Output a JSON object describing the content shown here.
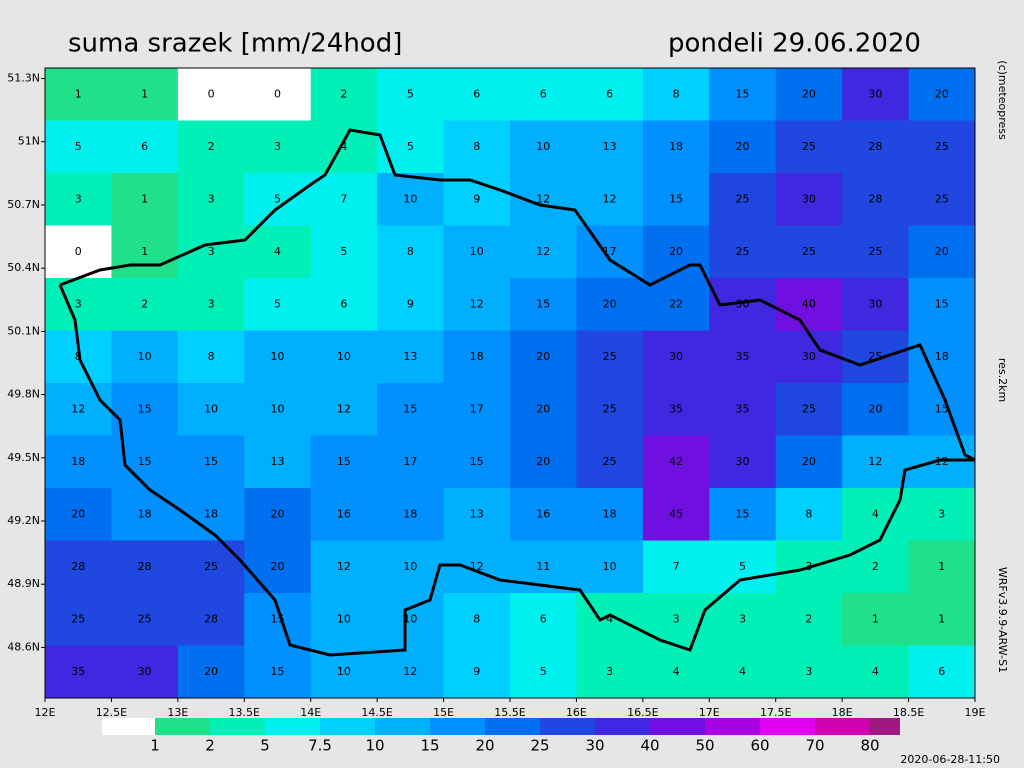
{
  "title": "suma srazek [mm/24hod]",
  "date": "pondeli 29.06.2020",
  "side_texts": [
    "(c)meteopress",
    "res.2km",
    "WRFv3.9.9-ARW-S1"
  ],
  "timestamp": "2020-06-28-11:50",
  "map": {
    "xlim": [
      12,
      19
    ],
    "ylim": [
      48.36,
      51.35
    ],
    "xticks": [
      {
        "value": 12,
        "label": "12E"
      },
      {
        "value": 12.5,
        "label": "12.5E"
      },
      {
        "value": 13,
        "label": "13E"
      },
      {
        "value": 13.5,
        "label": "13.5E"
      },
      {
        "value": 14,
        "label": "14E"
      },
      {
        "value": 14.5,
        "label": "14.5E"
      },
      {
        "value": 15,
        "label": "15E"
      },
      {
        "value": 15.5,
        "label": "15.5E"
      },
      {
        "value": 16,
        "label": "16E"
      },
      {
        "value": 16.5,
        "label": "16.5E"
      },
      {
        "value": 17,
        "label": "17E"
      },
      {
        "value": 17.5,
        "label": "17.5E"
      },
      {
        "value": 18,
        "label": "18E"
      },
      {
        "value": 18.5,
        "label": "18.5E"
      },
      {
        "value": 19,
        "label": "19E"
      }
    ],
    "yticks": [
      {
        "value": 51.3,
        "label": "51.3N"
      },
      {
        "value": 51,
        "label": "51N"
      },
      {
        "value": 50.7,
        "label": "50.7N"
      },
      {
        "value": 50.4,
        "label": "50.4N"
      },
      {
        "value": 50.1,
        "label": "50.1N"
      },
      {
        "value": 49.8,
        "label": "49.8N"
      },
      {
        "value": 49.5,
        "label": "49.5N"
      },
      {
        "value": 49.2,
        "label": "49.2N"
      },
      {
        "value": 48.9,
        "label": "48.9N"
      },
      {
        "value": 48.6,
        "label": "48.6N"
      }
    ],
    "values": [
      [
        1,
        1,
        0,
        0,
        2,
        5,
        6,
        6,
        6,
        8,
        15,
        20,
        30,
        20
      ],
      [
        5,
        6,
        2,
        3,
        4,
        5,
        8,
        10,
        13,
        18,
        20,
        25,
        28,
        25
      ],
      [
        3,
        1,
        3,
        5,
        7,
        10,
        9,
        12,
        12,
        15,
        25,
        30,
        28,
        25
      ],
      [
        0,
        1,
        3,
        4,
        5,
        8,
        10,
        12,
        17,
        20,
        25,
        25,
        25,
        20
      ],
      [
        3,
        2,
        3,
        5,
        6,
        9,
        12,
        15,
        20,
        22,
        30,
        40,
        30,
        15
      ],
      [
        8,
        10,
        8,
        10,
        10,
        13,
        18,
        20,
        25,
        30,
        35,
        30,
        25,
        18
      ],
      [
        12,
        15,
        10,
        10,
        12,
        15,
        17,
        20,
        25,
        35,
        35,
        25,
        20,
        15
      ],
      [
        18,
        15,
        15,
        13,
        15,
        17,
        15,
        20,
        25,
        42,
        30,
        20,
        12,
        12
      ],
      [
        20,
        18,
        18,
        20,
        16,
        18,
        13,
        16,
        18,
        45,
        15,
        8,
        4,
        3
      ],
      [
        28,
        28,
        25,
        20,
        12,
        10,
        12,
        11,
        10,
        7,
        5,
        3,
        2,
        1
      ],
      [
        25,
        25,
        28,
        15,
        10,
        10,
        8,
        6,
        4,
        3,
        3,
        2,
        1,
        1
      ],
      [
        35,
        30,
        20,
        15,
        10,
        12,
        9,
        5,
        3,
        4,
        4,
        3,
        4,
        6
      ]
    ]
  },
  "legend": {
    "labels": [
      1,
      2,
      5,
      7.5,
      10,
      15,
      20,
      25,
      30,
      40,
      50,
      60,
      70,
      80
    ],
    "colors": [
      "#ffffff",
      "#20e08a",
      "#00f0b8",
      "#00f0f0",
      "#00d0ff",
      "#00b0ff",
      "#0090ff",
      "#0070f0",
      "#2048e0",
      "#4028e0",
      "#7010e0",
      "#a800e0",
      "#e000f0",
      "#d000b0",
      "#a01880"
    ]
  }
}
